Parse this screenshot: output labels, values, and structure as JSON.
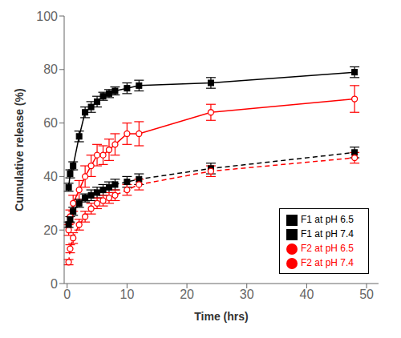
{
  "chart_data": {
    "type": "line",
    "xlabel": "Time (hrs)",
    "ylabel": "Cumulative release (%)",
    "x": [
      0.25,
      0.5,
      1,
      2,
      3,
      4,
      5,
      6,
      7,
      8,
      10,
      12,
      24,
      48
    ],
    "xlim": [
      -0.5,
      52
    ],
    "ylim": [
      0,
      100
    ],
    "xticks": [
      0,
      10,
      20,
      30,
      40,
      50
    ],
    "yticks": [
      0,
      20,
      40,
      60,
      80,
      100
    ],
    "grid": false,
    "legend": "lower right",
    "series": [
      {
        "name": "F1 at pH 6.5",
        "color": "black",
        "line_style": "solid",
        "marker": "square",
        "values": [
          36,
          41,
          44,
          55,
          64,
          66,
          68,
          70,
          71,
          72,
          73,
          74,
          75,
          79
        ],
        "error": [
          1.5,
          1.5,
          1.5,
          2,
          2,
          2,
          2,
          1.5,
          1.5,
          1.5,
          2,
          2,
          2,
          2
        ]
      },
      {
        "name": "F2 at pH 6.5",
        "color": "red",
        "line_style": "solid",
        "marker": "circle",
        "values": [
          20,
          25,
          30,
          35,
          40,
          44,
          48,
          48,
          50,
          52,
          56,
          56,
          64,
          69
        ],
        "error": [
          2,
          2.5,
          3,
          3.5,
          4,
          4,
          4,
          3.5,
          4,
          4,
          4,
          4.5,
          3,
          5
        ]
      },
      {
        "name": "F1 at pH 7.4",
        "color": "black",
        "line_style": "dashed",
        "marker": "square",
        "values": [
          22,
          24,
          27,
          30,
          32,
          33,
          34,
          35,
          36,
          37,
          38,
          39,
          43,
          49
        ],
        "error": [
          1,
          1,
          1.5,
          1.5,
          1.5,
          2,
          2,
          2,
          2,
          2,
          2,
          2,
          2,
          2
        ]
      },
      {
        "name": "F2 at pH 7.4",
        "color": "red",
        "line_style": "dashed",
        "marker": "circle",
        "values": [
          8,
          13,
          17,
          22,
          25,
          28,
          30,
          31,
          32,
          33,
          35,
          37,
          42,
          47
        ],
        "error": [
          1,
          1.5,
          2,
          2,
          2,
          2,
          2,
          2,
          2,
          2,
          2,
          2,
          2,
          2
        ]
      }
    ]
  }
}
